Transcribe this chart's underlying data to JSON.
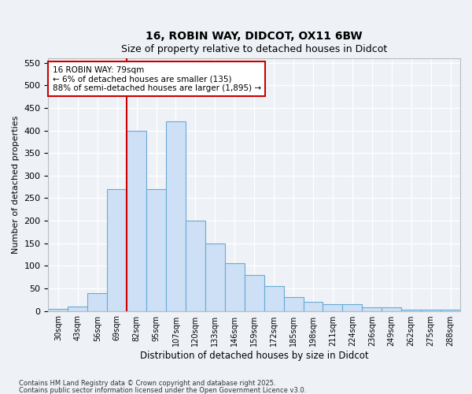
{
  "title_line1": "16, ROBIN WAY, DIDCOT, OX11 6BW",
  "title_line2": "Size of property relative to detached houses in Didcot",
  "xlabel": "Distribution of detached houses by size in Didcot",
  "ylabel": "Number of detached properties",
  "bar_color": "#cde0f5",
  "bar_edge_color": "#6aaad4",
  "bins": [
    "30sqm",
    "43sqm",
    "56sqm",
    "69sqm",
    "82sqm",
    "95sqm",
    "107sqm",
    "120sqm",
    "133sqm",
    "146sqm",
    "159sqm",
    "172sqm",
    "185sqm",
    "198sqm",
    "211sqm",
    "224sqm",
    "236sqm",
    "249sqm",
    "262sqm",
    "275sqm",
    "288sqm"
  ],
  "values": [
    5,
    10,
    40,
    270,
    400,
    270,
    420,
    200,
    150,
    105,
    80,
    55,
    30,
    20,
    15,
    15,
    8,
    8,
    3,
    3,
    2
  ],
  "ylim": [
    0,
    560
  ],
  "yticks": [
    0,
    50,
    100,
    150,
    200,
    250,
    300,
    350,
    400,
    450,
    500,
    550
  ],
  "vline_color": "#cc0000",
  "vline_x_idx": 3.5,
  "annotation_text": "16 ROBIN WAY: 79sqm\n← 6% of detached houses are smaller (135)\n88% of semi-detached houses are larger (1,895) →",
  "annotation_box_color": "#ffffff",
  "annotation_box_edge": "#cc0000",
  "footer_line1": "Contains HM Land Registry data © Crown copyright and database right 2025.",
  "footer_line2": "Contains public sector information licensed under the Open Government Licence v3.0.",
  "background_color": "#eef2f7",
  "grid_color": "#ffffff"
}
